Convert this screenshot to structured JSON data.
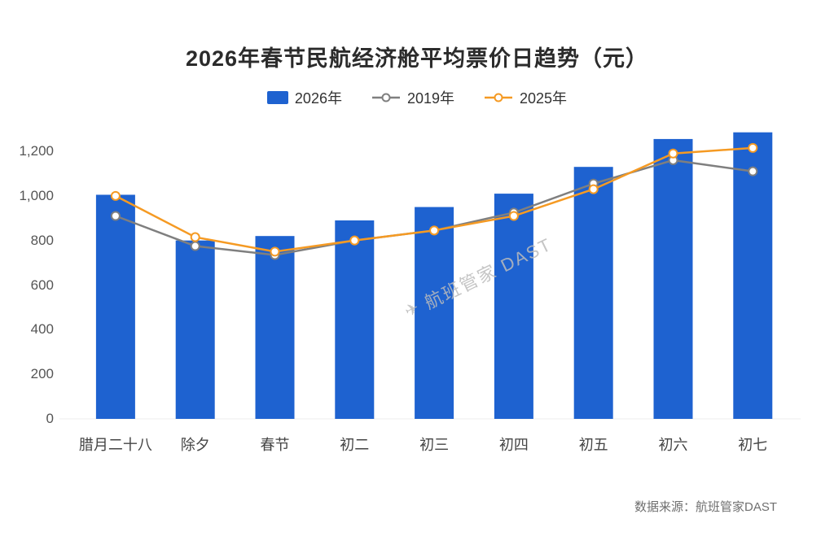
{
  "title": "2026年春节民航经济舱平均票价日趋势（元）",
  "watermark": "航班管家 DAST",
  "source": "数据来源：航班管家DAST",
  "colors": {
    "bar_2026": "#1E62D0",
    "line_2019": "#7F7F7F",
    "line_2025": "#F59A23",
    "title_text": "#2B2B2B",
    "axis_text": "#555555",
    "source_text": "#6F6F6F",
    "watermark_text": "#BCBCBC"
  },
  "chart_data": {
    "type": "bar",
    "title": "2026年春节民航经济舱平均票价日趋势（元）",
    "xlabel": "",
    "ylabel": "",
    "categories": [
      "腊月二十八",
      "除夕",
      "春节",
      "初二",
      "初三",
      "初四",
      "初五",
      "初六",
      "初七"
    ],
    "series": [
      {
        "name": "2026年",
        "type": "bar",
        "color": "#1E62D0",
        "values": [
          1005,
          800,
          820,
          890,
          950,
          1010,
          1130,
          1255,
          1285
        ]
      },
      {
        "name": "2019年",
        "type": "line",
        "color": "#7F7F7F",
        "values": [
          910,
          775,
          735,
          800,
          845,
          925,
          1055,
          1160,
          1110
        ]
      },
      {
        "name": "2025年",
        "type": "line",
        "color": "#F59A23",
        "values": [
          1000,
          815,
          750,
          800,
          845,
          910,
          1030,
          1190,
          1215
        ]
      }
    ],
    "ylim": [
      0,
      1300
    ],
    "yticks": [
      0,
      200,
      400,
      600,
      800,
      1000,
      1200
    ],
    "ytick_labels": [
      "0",
      "200",
      "400",
      "600",
      "800",
      "1,000",
      "1,200"
    ],
    "grid": false,
    "legend_position": "top"
  }
}
